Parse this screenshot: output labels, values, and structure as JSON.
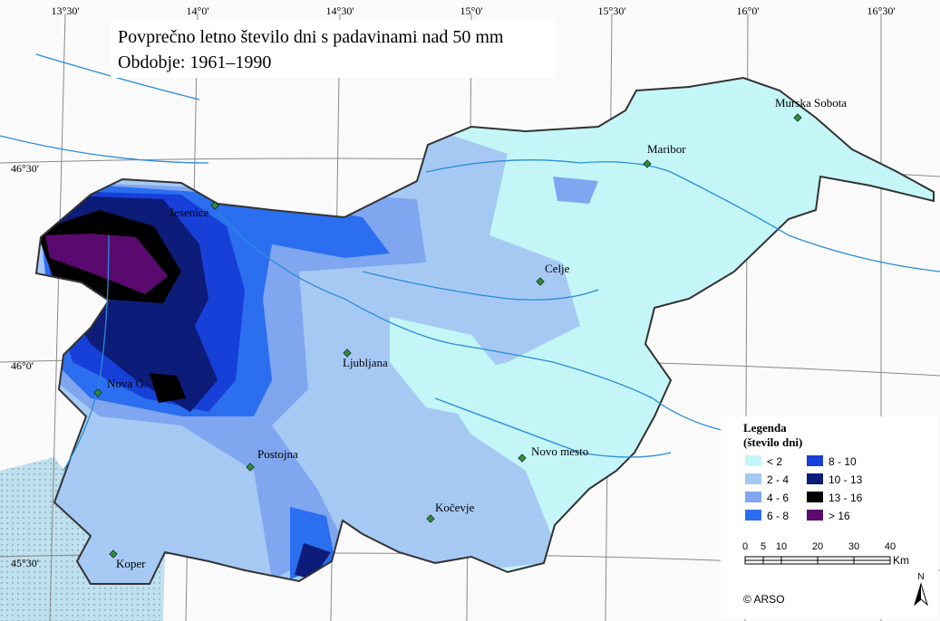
{
  "title": {
    "line1": "Povprečno letno število dni s padavinami nad 50 mm",
    "line2": "Obdobje: 1961–1990"
  },
  "graticule": {
    "top": [
      "13°30'",
      "14°0'",
      "14°30'",
      "15°0'",
      "15°30'",
      "16°0'",
      "16°30'"
    ],
    "left": [
      "46°30'",
      "46°0'",
      "45°30'"
    ]
  },
  "cities": [
    {
      "label": "Murska Sobota"
    },
    {
      "label": "Maribor"
    },
    {
      "label": "Jesenice"
    },
    {
      "label": "Celje"
    },
    {
      "label": "Ljubljana"
    },
    {
      "label": "Nova G."
    },
    {
      "label": "Novo mesto"
    },
    {
      "label": "Postojna"
    },
    {
      "label": "Kočevje"
    },
    {
      "label": "Koper"
    }
  ],
  "legend": {
    "title": "Legenda",
    "subtitle": "(število dni)",
    "items": [
      {
        "label": "< 2",
        "color": "#c4f6f8"
      },
      {
        "label": "2 - 4",
        "color": "#a6c9f4"
      },
      {
        "label": "4 - 6",
        "color": "#7fa6ef"
      },
      {
        "label": "6 - 8",
        "color": "#2b6ff0"
      },
      {
        "label": "8 - 10",
        "color": "#1640d8"
      },
      {
        "label": "10 - 13",
        "color": "#0c1c78"
      },
      {
        "label": "13 - 16",
        "color": "#000000"
      },
      {
        "label": "> 16",
        "color": "#5a0a6e"
      }
    ]
  },
  "scale": {
    "ticks": [
      0,
      5,
      10,
      20,
      30,
      40
    ],
    "unit": "Km"
  },
  "north": "N",
  "credit": "© ARSO"
}
